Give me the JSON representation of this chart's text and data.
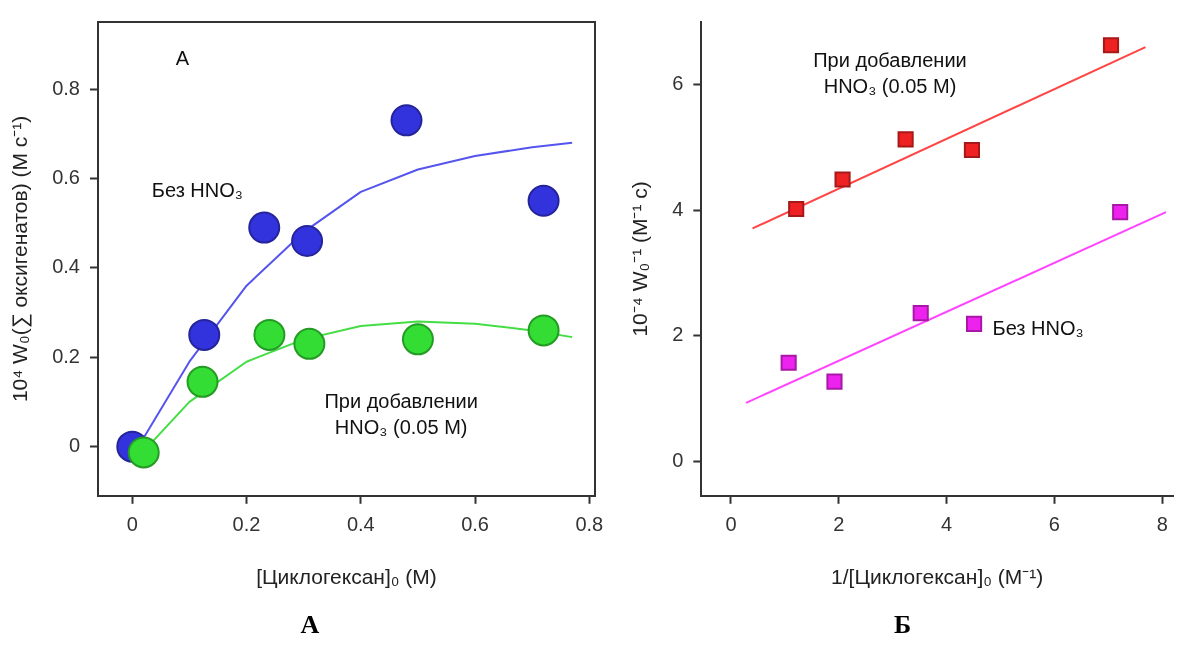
{
  "chart_data": [
    {
      "type": "scatter",
      "xlabel": "[Циклогексан]₀ (М)",
      "ylabel": "10⁴ W₀(∑ оксигенатов) (М с⁻¹)",
      "xlim": [
        -0.06,
        0.81
      ],
      "ylim": [
        -0.11,
        0.95
      ],
      "xticks": [
        0,
        0.2,
        0.4,
        0.6,
        0.8
      ],
      "yticks": [
        0,
        0.2,
        0.4,
        0.6,
        0.8
      ],
      "x": [
        0,
        0.126,
        0.231,
        0.306,
        0.48,
        0.72
      ],
      "series": [
        {
          "name": "Без HNO₃",
          "marker": "circle",
          "color": "#3333dd",
          "values": [
            0,
            0.25,
            0.49,
            0.46,
            0.73,
            0.55
          ]
        },
        {
          "name": "При добавлении\nHNO₃ (0.05 М)",
          "marker": "circle",
          "color": "#33dd33",
          "x": [
            0.02,
            0.123,
            0.24,
            0.31,
            0.5,
            0.72
          ],
          "values": [
            -0.013,
            0.145,
            0.25,
            0.23,
            0.24,
            0.26
          ]
        },
        {
          "type": "line",
          "marker": "none",
          "color": "#5555ee",
          "x": [
            0.02,
            0.1,
            0.2,
            0.3,
            0.4,
            0.5,
            0.6,
            0.7,
            0.77
          ],
          "values": [
            0.02,
            0.19,
            0.36,
            0.48,
            0.57,
            0.62,
            0.65,
            0.67,
            0.68
          ]
        },
        {
          "type": "line",
          "marker": "none",
          "color": "#44dd44",
          "x": [
            0.02,
            0.1,
            0.2,
            0.3,
            0.4,
            0.5,
            0.6,
            0.7,
            0.77
          ],
          "values": [
            -0.01,
            0.1,
            0.19,
            0.24,
            0.27,
            0.28,
            0.275,
            0.26,
            0.245
          ]
        }
      ],
      "annotations": [
        "А",
        "А"
      ]
    },
    {
      "type": "scatter",
      "xlabel": "1/[Циклогексан]₀ (М⁻¹)",
      "ylabel": "10⁻⁴ W₀⁻¹ (М⁻¹ с)",
      "xlim": [
        -0.55,
        8.2
      ],
      "ylim": [
        -0.55,
        7.0
      ],
      "xticks": [
        0,
        2,
        4,
        6,
        8
      ],
      "yticks": [
        0,
        2,
        4,
        6
      ],
      "series": [
        {
          "name": "При добавлении\nHNO₃ (0.05 М)",
          "marker": "square",
          "color": "#ee2222",
          "x": [
            1.21,
            2.07,
            3.24,
            4.47,
            7.05
          ],
          "values": [
            4.02,
            4.49,
            5.13,
            4.96,
            6.63
          ]
        },
        {
          "name": "Без HNO₃",
          "marker": "square",
          "color": "#ee22ee",
          "x": [
            1.07,
            1.92,
            3.52,
            4.51,
            7.22
          ],
          "values": [
            1.57,
            1.27,
            2.36,
            2.19,
            3.97
          ]
        },
        {
          "type": "line",
          "marker": "none",
          "color": "#ff4444",
          "x": [
            0.4,
            7.69
          ],
          "values": [
            3.71,
            6.6
          ]
        },
        {
          "type": "line",
          "marker": "none",
          "color": "#ff44ff",
          "x": [
            0.28,
            8.07
          ],
          "values": [
            0.93,
            3.97
          ]
        }
      ],
      "annotations": [
        "Б"
      ]
    }
  ]
}
